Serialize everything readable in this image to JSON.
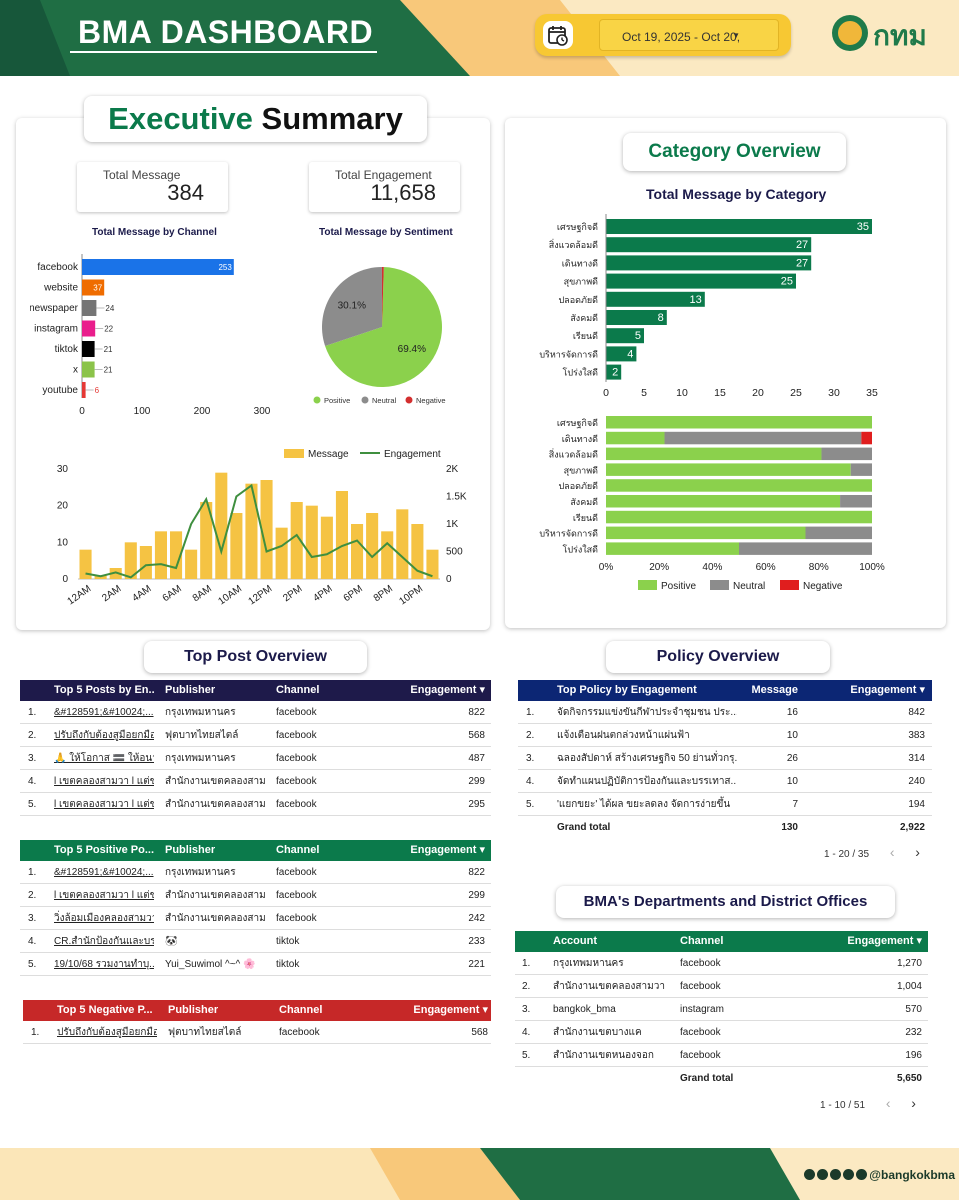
{
  "header": {
    "title": "BMA DASHBOARD",
    "date_range": "Oct 19, 2025 - Oct 20,",
    "logo_text": "กทม"
  },
  "colors": {
    "dark_green": "#1f6e44",
    "green": "#0b7a4b",
    "light_green": "#8bd14c",
    "yellow": "#f5c343",
    "navy": "#1e1a4a",
    "blue_header": "#0c2674",
    "red": "#c62828",
    "gray": "#8c8c8c",
    "blue_bar": "#1a73e8"
  },
  "executive": {
    "title_green": "Executive",
    "title_dark": "Summary",
    "total_message_label": "Total Message",
    "total_message_value": "384",
    "total_engagement_label": "Total Engagement",
    "total_engagement_value": "11,658",
    "channel_chart_title": "Total Message by Channel",
    "sentiment_chart_title": "Total Message by Sentiment"
  },
  "category": {
    "title": "Category Overview",
    "bar_chart_title": "Total Message by Category"
  },
  "chart_data": [
    {
      "type": "bar",
      "orientation": "horizontal",
      "title": "Total Message by Channel",
      "categories": [
        "facebook",
        "website",
        "newspaper",
        "instagram",
        "tiktok",
        "x",
        "youtube"
      ],
      "values": [
        253,
        37,
        24,
        22,
        21,
        21,
        6
      ],
      "colors": [
        "#1a73e8",
        "#ef6c00",
        "#757575",
        "#e91e8c",
        "#000000",
        "#8bc34a",
        "#e53935"
      ],
      "xlim": [
        0,
        300
      ],
      "xticks": [
        0,
        100,
        200,
        300
      ]
    },
    {
      "type": "pie",
      "title": "Total Message by Sentiment",
      "labels": [
        "Positive",
        "Neutral",
        "Negative"
      ],
      "values": [
        69.4,
        30.1,
        0.5
      ],
      "slice_labels": [
        "69.4%",
        "30.1%",
        ""
      ],
      "colors": [
        "#8bd14c",
        "#8c8c8c",
        "#d32f2f"
      ],
      "legend": "bottom"
    },
    {
      "type": "bar+line",
      "legend": [
        "Message",
        "Engagement"
      ],
      "x_labels_shown": [
        "12AM",
        "2AM",
        "4AM",
        "6AM",
        "8AM",
        "10AM",
        "12PM",
        "2PM",
        "4PM",
        "6PM",
        "8PM",
        "10PM"
      ],
      "hours": [
        0,
        1,
        2,
        3,
        4,
        5,
        6,
        7,
        8,
        9,
        10,
        11,
        12,
        13,
        14,
        15,
        16,
        17,
        18,
        19,
        20,
        21,
        22,
        23
      ],
      "message": [
        8,
        1,
        3,
        10,
        9,
        13,
        13,
        8,
        21,
        29,
        18,
        26,
        27,
        14,
        21,
        20,
        17,
        24,
        15,
        18,
        13,
        19,
        15,
        8
      ],
      "engagement": [
        100,
        50,
        120,
        30,
        250,
        270,
        200,
        1000,
        1450,
        500,
        1500,
        1700,
        500,
        600,
        800,
        400,
        450,
        600,
        700,
        400,
        650,
        400,
        150,
        50
      ],
      "ylim_left": [
        0,
        30
      ],
      "yticks_left": [
        0,
        10,
        20,
        30
      ],
      "ylim_right": [
        0,
        2000
      ],
      "yticks_right_labels": [
        "0",
        "500",
        "1K",
        "1.5K",
        "2K"
      ]
    },
    {
      "type": "bar",
      "orientation": "horizontal",
      "title": "Total Message by Category",
      "categories": [
        "เศรษฐกิจดี",
        "สิ่งแวดล้อมดี",
        "เดินทางดี",
        "สุขภาพดี",
        "ปลอดภัยดี",
        "สังคมดี",
        "เรียนดี",
        "บริหารจัดการดี",
        "โปร่งใสดี"
      ],
      "values": [
        35,
        27,
        27,
        25,
        13,
        8,
        5,
        4,
        2
      ],
      "xlim": [
        0,
        35
      ],
      "xticks": [
        0,
        5,
        10,
        15,
        20,
        25,
        30,
        35
      ]
    },
    {
      "type": "bar",
      "orientation": "horizontal",
      "stacked": "100%",
      "categories": [
        "เศรษฐกิจดี",
        "เดินทางดี",
        "สิ่งแวดล้อมดี",
        "สุขภาพดี",
        "ปลอดภัยดี",
        "สังคมดี",
        "เรียนดี",
        "บริหารจัดการดี",
        "โปร่งใสดี"
      ],
      "series": [
        {
          "name": "Positive",
          "values": [
            100,
            22,
            81,
            92,
            100,
            88,
            100,
            75,
            50
          ]
        },
        {
          "name": "Neutral",
          "values": [
            0,
            74,
            19,
            8,
            0,
            12,
            0,
            25,
            50
          ]
        },
        {
          "name": "Negative",
          "values": [
            0,
            4,
            0,
            0,
            0,
            0,
            0,
            0,
            0
          ]
        }
      ],
      "colors": [
        "#8bd14c",
        "#8c8c8c",
        "#e01e1e"
      ],
      "xticks": [
        "0%",
        "20%",
        "40%",
        "60%",
        "80%",
        "100%"
      ],
      "legend": "bottom"
    }
  ],
  "top_post": {
    "title": "Top Post Overview",
    "posts": {
      "headers": [
        "Top 5 Posts by En...",
        "Publisher",
        "Channel",
        "Engagement ▾"
      ],
      "rows": [
        {
          "n": "1.",
          "post": "&#128591;&#10024;...",
          "publisher": "กรุงเทพมหานคร",
          "channel": "facebook",
          "eng": "822"
        },
        {
          "n": "2.",
          "post": "ปรับถึงกับต้องสูมือยกมือยอ...",
          "publisher": "ฟุตบาทไทยสไตล์",
          "channel": "facebook",
          "eng": "568"
        },
        {
          "n": "3.",
          "post": "🙏 ให้โอกาส 🟰 ให้อนาค...",
          "publisher": "กรุงเทพมหานคร",
          "channel": "facebook",
          "eng": "487"
        },
        {
          "n": "4.",
          "post": "l เขตคลองสามวา l แต่ขยับ...",
          "publisher": "สำนักงานเขตคลองสามวา",
          "channel": "facebook",
          "eng": "299"
        },
        {
          "n": "5.",
          "post": "l เขตคลองสามวา l แต่ขยับ...",
          "publisher": "สำนักงานเขตคลองสามวา",
          "channel": "facebook",
          "eng": "295"
        }
      ]
    },
    "positive": {
      "headers": [
        "Top 5 Positive Po...",
        "Publisher",
        "Channel",
        "Engagement ▾"
      ],
      "rows": [
        {
          "n": "1.",
          "post": "&#128591;&#10024;...",
          "publisher": "กรุงเทพมหานคร",
          "channel": "facebook",
          "eng": "822"
        },
        {
          "n": "2.",
          "post": "l เขตคลองสามวา l แต่ขยับ...",
          "publisher": "สำนักงานเขตคลองสามวา",
          "channel": "facebook",
          "eng": "299"
        },
        {
          "n": "3.",
          "post": "วิ่งล้อมเมืองคลองสามวาไ...",
          "publisher": "สำนักงานเขตคลองสามวา",
          "channel": "facebook",
          "eng": "242"
        },
        {
          "n": "4.",
          "post": "CR.สำนักป้องกันและบรรเ...",
          "publisher": "🐼",
          "channel": "tiktok",
          "eng": "233"
        },
        {
          "n": "5.",
          "post": "19/10/68 รวมงานทำบุ...",
          "publisher": "Yui_Suwimol ^~^ 🌸",
          "channel": "tiktok",
          "eng": "221"
        }
      ]
    },
    "negative": {
      "headers": [
        "Top 5 Negative P...",
        "Publisher",
        "Channel",
        "Engagement ▾"
      ],
      "rows": [
        {
          "n": "1.",
          "post": "ปรับถึงกับต้องสูมือยกมือยอ...",
          "publisher": "ฟุตบาทไทยสไตล์",
          "channel": "facebook",
          "eng": "568"
        }
      ]
    }
  },
  "policy": {
    "title": "Policy Overview",
    "headers": [
      "Top Policy by Engagement",
      "Message",
      "Engagement ▾"
    ],
    "rows": [
      {
        "n": "1.",
        "name": "จัดกิจกรรมแข่งขันกีฬาประจำชุมชน ประ...",
        "msg": "16",
        "eng": "842"
      },
      {
        "n": "2.",
        "name": "แจ้งเตือนฝนตกล่วงหน้าแผ่นฟ้า",
        "msg": "10",
        "eng": "383"
      },
      {
        "n": "3.",
        "name": "ฉลองสัปดาห์ สร้างเศรษฐกิจ 50 ย่านทั่วกรุ...",
        "msg": "26",
        "eng": "314"
      },
      {
        "n": "4.",
        "name": "จัดทำแผนปฏิบัติการป้องกันและบรรเทาส...",
        "msg": "10",
        "eng": "240"
      },
      {
        "n": "5.",
        "name": "'แยกขยะ' ได้ผล ขยะลดลง จัดการง่ายขึ้น",
        "msg": "7",
        "eng": "194"
      }
    ],
    "total_label": "Grand total",
    "total_msg": "130",
    "total_eng": "2,922",
    "pager": "1 - 20 / 35"
  },
  "departments": {
    "title": "BMA's Departments and District Offices",
    "headers": [
      "Account",
      "Channel",
      "Engagement ▾"
    ],
    "rows": [
      {
        "n": "1.",
        "account": "กรุงเทพมหานคร",
        "channel": "facebook",
        "eng": "1,270"
      },
      {
        "n": "2.",
        "account": "สำนักงานเขตคลองสามวา",
        "channel": "facebook",
        "eng": "1,004"
      },
      {
        "n": "3.",
        "account": "bangkok_bma",
        "channel": "instagram",
        "eng": "570"
      },
      {
        "n": "4.",
        "account": "สำนักงานเขตบางแค",
        "channel": "facebook",
        "eng": "232"
      },
      {
        "n": "5.",
        "account": "สำนักงานเขตหนองจอก",
        "channel": "facebook",
        "eng": "196"
      }
    ],
    "total_label": "Grand total",
    "total_eng": "5,650",
    "pager": "1 - 10 / 51"
  },
  "footer": {
    "handle": "@bangkokbma",
    "icons": [
      "x-icon",
      "facebook-icon",
      "youtube-icon",
      "instagram-icon",
      "tiktok-icon"
    ]
  }
}
